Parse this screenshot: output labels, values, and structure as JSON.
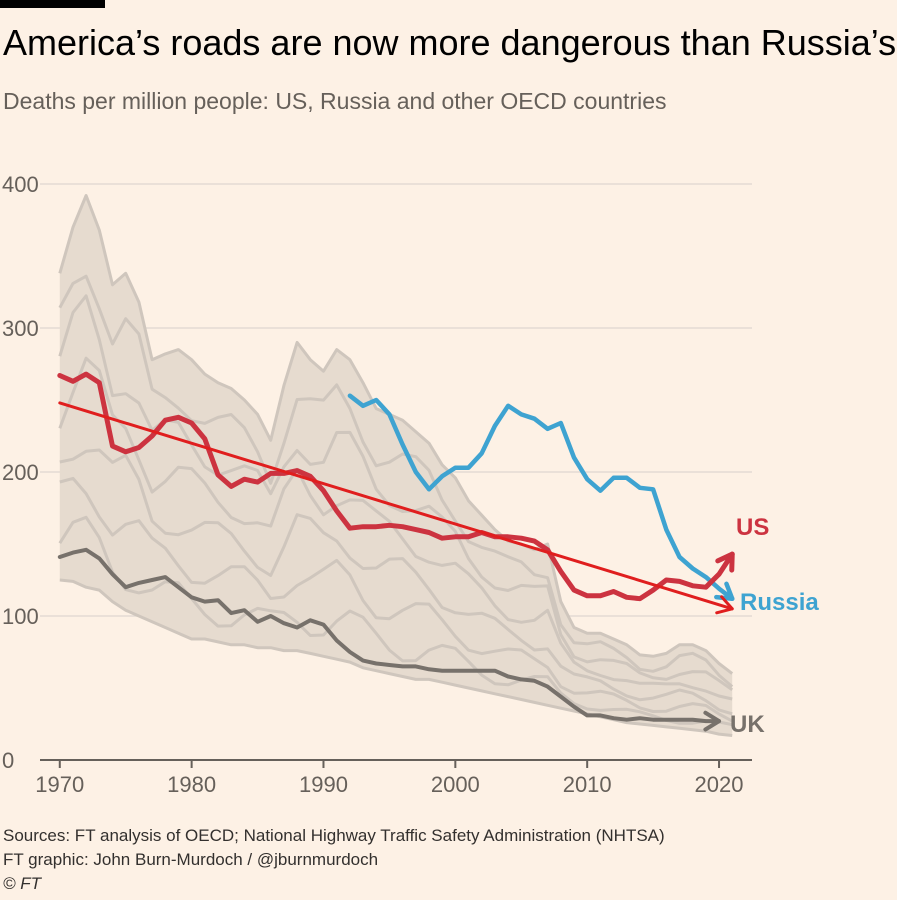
{
  "header": {
    "title": "America’s roads are now more dangerous than Russia’s",
    "subtitle": "Deaths per million people: US, Russia and other OECD countries"
  },
  "footer": {
    "sources": "Sources: FT analysis of OECD; National Highway Traffic Safety Administration (NHTSA)",
    "graphic": "FT graphic: John Burn-Murdoch / @jburnmurdoch",
    "copyright": "© FT"
  },
  "colors": {
    "background": "#fdf1e5",
    "us": "#cc3340",
    "russia": "#3ea3d1",
    "uk": "#77716b",
    "trend": "#e01e1e",
    "oecd_band": "#e6dbcf",
    "oecd_lines": "#cfc6bd",
    "grid": "#e3dbd3"
  },
  "chart_data": {
    "type": "line",
    "title": "America’s roads are now more dangerous than Russia’s",
    "subtitle": "Deaths per million people: US, Russia and other OECD countries",
    "xlabel": "",
    "ylabel": "",
    "xlim": [
      1968.5,
      2022.5
    ],
    "ylim": [
      0,
      400
    ],
    "x_ticks": [
      1970,
      1980,
      1990,
      2000,
      2010,
      2020
    ],
    "y_ticks": [
      0,
      100,
      200,
      300,
      400
    ],
    "grid": true,
    "series": [
      {
        "name": "US",
        "color": "#cc3340",
        "points": [
          [
            1970,
            267
          ],
          [
            1971,
            263
          ],
          [
            1972,
            268
          ],
          [
            1973,
            262
          ],
          [
            1974,
            218
          ],
          [
            1975,
            214
          ],
          [
            1976,
            217
          ],
          [
            1977,
            225
          ],
          [
            1978,
            236
          ],
          [
            1979,
            238
          ],
          [
            1980,
            234
          ],
          [
            1981,
            223
          ],
          [
            1982,
            198
          ],
          [
            1983,
            190
          ],
          [
            1984,
            195
          ],
          [
            1985,
            193
          ],
          [
            1986,
            199
          ],
          [
            1987,
            199
          ],
          [
            1988,
            201
          ],
          [
            1989,
            197
          ],
          [
            1990,
            187
          ],
          [
            1991,
            173
          ],
          [
            1992,
            161
          ],
          [
            1993,
            162
          ],
          [
            1994,
            162
          ],
          [
            1995,
            163
          ],
          [
            1996,
            162
          ],
          [
            1997,
            160
          ],
          [
            1998,
            158
          ],
          [
            1999,
            154
          ],
          [
            2000,
            155
          ],
          [
            2001,
            155
          ],
          [
            2002,
            158
          ],
          [
            2003,
            155
          ],
          [
            2004,
            155
          ],
          [
            2005,
            154
          ],
          [
            2006,
            152
          ],
          [
            2007,
            146
          ],
          [
            2008,
            131
          ],
          [
            2009,
            118
          ],
          [
            2010,
            114
          ],
          [
            2011,
            114
          ],
          [
            2012,
            117
          ],
          [
            2013,
            113
          ],
          [
            2014,
            112
          ],
          [
            2015,
            118
          ],
          [
            2016,
            125
          ],
          [
            2017,
            124
          ],
          [
            2018,
            121
          ],
          [
            2019,
            120
          ],
          [
            2020,
            129
          ],
          [
            2021,
            143
          ]
        ]
      },
      {
        "name": "Russia",
        "color": "#3ea3d1",
        "points": [
          [
            1992,
            253
          ],
          [
            1993,
            246
          ],
          [
            1994,
            250
          ],
          [
            1995,
            240
          ],
          [
            1996,
            219
          ],
          [
            1997,
            200
          ],
          [
            1998,
            188
          ],
          [
            1999,
            197
          ],
          [
            2000,
            203
          ],
          [
            2001,
            203
          ],
          [
            2002,
            213
          ],
          [
            2003,
            232
          ],
          [
            2004,
            246
          ],
          [
            2005,
            240
          ],
          [
            2006,
            237
          ],
          [
            2007,
            230
          ],
          [
            2008,
            234
          ],
          [
            2009,
            210
          ],
          [
            2010,
            195
          ],
          [
            2011,
            187
          ],
          [
            2012,
            196
          ],
          [
            2013,
            196
          ],
          [
            2014,
            189
          ],
          [
            2015,
            188
          ],
          [
            2016,
            160
          ],
          [
            2017,
            141
          ],
          [
            2018,
            133
          ],
          [
            2019,
            127
          ],
          [
            2020,
            119
          ],
          [
            2021,
            112
          ]
        ]
      },
      {
        "name": "UK",
        "color": "#77716b",
        "points": [
          [
            1970,
            141
          ],
          [
            1971,
            144
          ],
          [
            1972,
            146
          ],
          [
            1973,
            140
          ],
          [
            1974,
            129
          ],
          [
            1975,
            120
          ],
          [
            1976,
            123
          ],
          [
            1977,
            125
          ],
          [
            1978,
            127
          ],
          [
            1979,
            120
          ],
          [
            1980,
            113
          ],
          [
            1981,
            110
          ],
          [
            1982,
            111
          ],
          [
            1983,
            102
          ],
          [
            1984,
            104
          ],
          [
            1985,
            96
          ],
          [
            1986,
            100
          ],
          [
            1987,
            95
          ],
          [
            1988,
            92
          ],
          [
            1989,
            97
          ],
          [
            1990,
            94
          ],
          [
            1991,
            83
          ],
          [
            1992,
            75
          ],
          [
            1993,
            69
          ],
          [
            1994,
            67
          ],
          [
            1995,
            66
          ],
          [
            1996,
            65
          ],
          [
            1997,
            65
          ],
          [
            1998,
            63
          ],
          [
            1999,
            62
          ],
          [
            2000,
            62
          ],
          [
            2001,
            62
          ],
          [
            2002,
            62
          ],
          [
            2003,
            62
          ],
          [
            2004,
            58
          ],
          [
            2005,
            56
          ],
          [
            2006,
            55
          ],
          [
            2007,
            51
          ],
          [
            2008,
            44
          ],
          [
            2009,
            37
          ],
          [
            2010,
            31
          ],
          [
            2011,
            31
          ],
          [
            2012,
            29
          ],
          [
            2013,
            28
          ],
          [
            2014,
            29
          ],
          [
            2015,
            28
          ],
          [
            2016,
            28
          ],
          [
            2017,
            28
          ],
          [
            2018,
            28
          ],
          [
            2019,
            27
          ],
          [
            2020,
            27
          ]
        ]
      },
      {
        "name": "Trend",
        "color": "#e01e1e",
        "points": [
          [
            1970,
            248
          ],
          [
            2021,
            105
          ]
        ]
      }
    ],
    "oecd_band": {
      "color": "#e6dbcf",
      "x": [
        1970,
        1971,
        1972,
        1973,
        1974,
        1975,
        1976,
        1977,
        1978,
        1979,
        1980,
        1981,
        1982,
        1983,
        1984,
        1985,
        1986,
        1987,
        1988,
        1989,
        1990,
        1991,
        1992,
        1993,
        1994,
        1995,
        1996,
        1997,
        1998,
        1999,
        2000,
        2001,
        2002,
        2003,
        2004,
        2005,
        2006,
        2007,
        2008,
        2009,
        2010,
        2011,
        2012,
        2013,
        2014,
        2015,
        2016,
        2017,
        2018,
        2019,
        2020,
        2021
      ],
      "upper": [
        338,
        370,
        392,
        368,
        330,
        338,
        318,
        278,
        282,
        285,
        278,
        268,
        262,
        258,
        250,
        240,
        222,
        260,
        290,
        278,
        270,
        285,
        278,
        262,
        244,
        240,
        236,
        228,
        220,
        205,
        196,
        180,
        170,
        160,
        152,
        150,
        146,
        150,
        110,
        92,
        88,
        88,
        84,
        80,
        73,
        72,
        74,
        80,
        80,
        76,
        67,
        60
      ],
      "lower": [
        125,
        124,
        120,
        118,
        110,
        104,
        100,
        96,
        92,
        88,
        84,
        84,
        82,
        80,
        80,
        78,
        78,
        76,
        76,
        74,
        72,
        70,
        68,
        64,
        62,
        60,
        58,
        56,
        56,
        54,
        52,
        50,
        48,
        46,
        44,
        42,
        40,
        38,
        36,
        34,
        32,
        30,
        28,
        26,
        25,
        24,
        23,
        22,
        21,
        20,
        18,
        17
      ]
    },
    "annotations": [
      {
        "text": "US",
        "series": "US"
      },
      {
        "text": "Russia",
        "series": "Russia"
      },
      {
        "text": "UK",
        "series": "UK"
      }
    ]
  }
}
